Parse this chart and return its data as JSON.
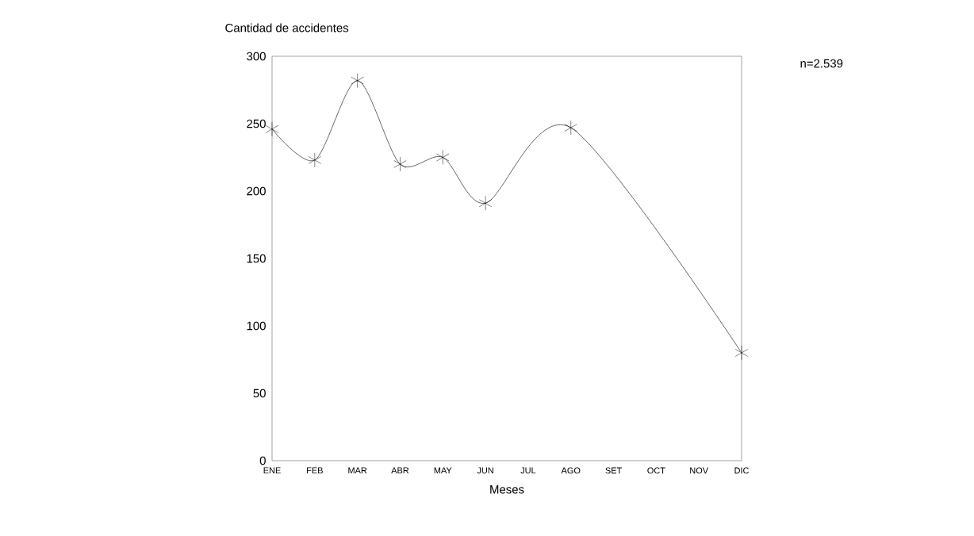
{
  "chart_data": {
    "type": "line",
    "xlabel": "Meses",
    "ylabel": "Cantidad de accidentes",
    "categories": [
      "ENE",
      "FEB",
      "MAR",
      "ABR",
      "MAY",
      "JUN",
      "JUL",
      "AGO",
      "SET",
      "OCT",
      "NOV",
      "DIC"
    ],
    "values": [
      246,
      223,
      282,
      220,
      225,
      191,
      null,
      247,
      null,
      null,
      null,
      80
    ],
    "color": "#000000",
    "marker": "cross",
    "ylim": [
      0,
      300
    ],
    "yticks": [
      0,
      50,
      100,
      150,
      200,
      250,
      300
    ],
    "grid": false,
    "annotations": [
      "n=2.539"
    ]
  }
}
